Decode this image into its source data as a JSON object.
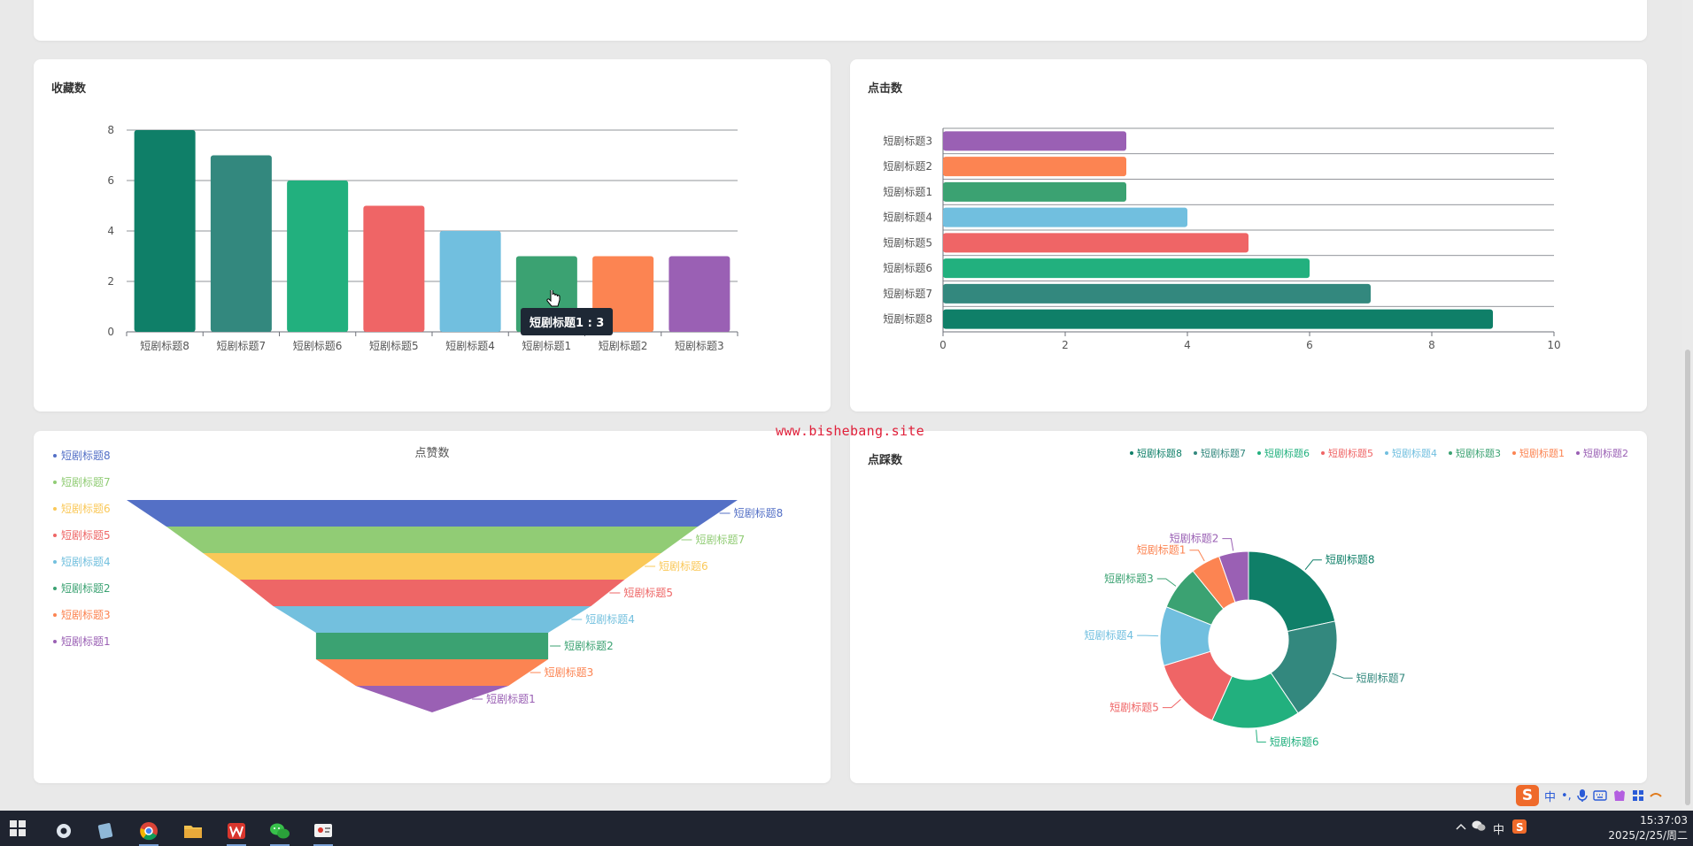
{
  "watermark": "www.bishebang.site",
  "charts": {
    "favorites": {
      "title": "收藏数",
      "tooltip": "短剧标题1 : 3"
    },
    "clicks": {
      "title": "点击数"
    },
    "likes": {
      "title": "点赞数"
    },
    "dislikes": {
      "title": "点踩数"
    }
  },
  "chart_data": [
    {
      "id": "favorites",
      "type": "bar",
      "title": "收藏数",
      "categories": [
        "短剧标题8",
        "短剧标题7",
        "短剧标题6",
        "短剧标题5",
        "短剧标题4",
        "短剧标题1",
        "短剧标题2",
        "短剧标题3"
      ],
      "values": [
        8,
        7,
        6,
        5,
        4,
        3,
        3,
        3
      ],
      "colors": [
        "#0f7f68",
        "#33887e",
        "#22b07e",
        "#ef6566",
        "#71bfdf",
        "#3ba272",
        "#fc8452",
        "#9a60b4"
      ],
      "ylim": [
        0,
        8
      ],
      "yticks": [
        0,
        2,
        4,
        6,
        8
      ],
      "grid": true
    },
    {
      "id": "clicks",
      "type": "bar",
      "orientation": "horizontal",
      "title": "点击数",
      "categories": [
        "短剧标题3",
        "短剧标题2",
        "短剧标题1",
        "短剧标题4",
        "短剧标题5",
        "短剧标题6",
        "短剧标题7",
        "短剧标题8"
      ],
      "values": [
        3,
        3,
        3,
        4,
        5,
        6,
        7,
        9
      ],
      "colors": [
        "#9a60b4",
        "#fc8452",
        "#3ba272",
        "#71bfdf",
        "#ef6566",
        "#22b07e",
        "#33887e",
        "#0f7f68"
      ],
      "xlim": [
        0,
        10
      ],
      "xticks": [
        0,
        2,
        4,
        6,
        8,
        10
      ],
      "grid": true
    },
    {
      "id": "likes",
      "type": "funnel",
      "title": "点赞数",
      "legend": [
        "短剧标题8",
        "短剧标题7",
        "短剧标题6",
        "短剧标题5",
        "短剧标题4",
        "短剧标题2",
        "短剧标题3",
        "短剧标题1"
      ],
      "categories": [
        "短剧标题8",
        "短剧标题7",
        "短剧标题6",
        "短剧标题5",
        "短剧标题4",
        "短剧标题2",
        "短剧标题3",
        "短剧标题1"
      ],
      "values": [
        100,
        87,
        75,
        63,
        52,
        38,
        38,
        25
      ],
      "colors": [
        "#5470c6",
        "#91cc75",
        "#fac858",
        "#ee6666",
        "#73c0de",
        "#3ba272",
        "#fc8452",
        "#9a60b4"
      ],
      "legend_position": "left"
    },
    {
      "id": "dislikes",
      "type": "pie",
      "title": "点踩数",
      "donut": true,
      "legend": [
        "短剧标题8",
        "短剧标题7",
        "短剧标题6",
        "短剧标题5",
        "短剧标题4",
        "短剧标题3",
        "短剧标题1",
        "短剧标题2"
      ],
      "legend_colors": [
        "#0f7f68",
        "#33887e",
        "#22b07e",
        "#ef6566",
        "#71bfdf",
        "#3ba272",
        "#fc8452",
        "#9a60b4"
      ],
      "categories": [
        "短剧标题8",
        "短剧标题7",
        "短剧标题6",
        "短剧标题5",
        "短剧标题4",
        "短剧标题3",
        "短剧标题1",
        "短剧标题2"
      ],
      "values": [
        8,
        7,
        6,
        5,
        4,
        3,
        2,
        2
      ],
      "colors": [
        "#0f7f68",
        "#33887e",
        "#22b07e",
        "#ef6566",
        "#71bfdf",
        "#3ba272",
        "#fc8452",
        "#9a60b4"
      ],
      "legend_position": "top-right"
    }
  ],
  "taskbar": {
    "apps": [
      "settings",
      "notes",
      "chrome",
      "files",
      "wps",
      "wechat",
      "presenter"
    ],
    "time": "15:37:03",
    "date": "2025/2/25/周二",
    "ime_label": "中",
    "tray_ime": "中"
  }
}
